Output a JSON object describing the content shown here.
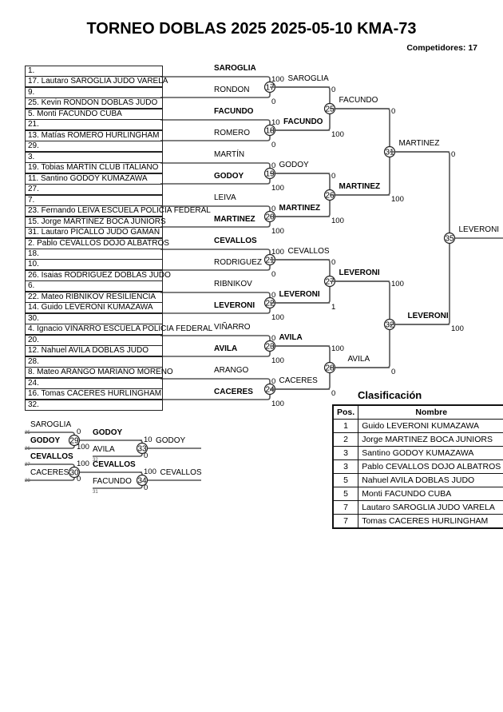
{
  "title": "TORNEO DOBLAS 2025 2025-05-10 KMA-73",
  "competitors": "Competidores: 17",
  "entries": [
    "1.",
    "17. Lautaro SAROGLIA JUDO VARELA",
    "9.",
    "25. Kevin RONDON DOBLAS JUDO",
    "5. Monti FACUNDO CUBA",
    "21.",
    "13. Matías ROMERO HURLINGHAM",
    "29.",
    "3.",
    "19. Tobias MARTÍN CLUB ITALIANO",
    "11. Santino GODOY KUMAZAWA",
    "27.",
    "7.",
    "23. Fernando LEIVA ESCUELA POLICIA FEDERAL",
    "15. Jorge MARTINEZ BOCA JUNIORS",
    "31. Lautaro PICALLO JUDO GAMAN",
    "2. Pablo CEVALLOS DOJO ALBATROS",
    "18.",
    "10.",
    "26. Isaias RODRIGUEZ DOBLAS JUDO",
    "6.",
    "22. Mateo RIBNIKOV RESILIENCIA",
    "14. Guido LEVERONI KUMAZAWA",
    "30.",
    "4. Ignacio VIÑARRO ESCUELA POLICIA FEDERAL",
    "20.",
    "12. Nahuel AVILA DOBLAS JUDO",
    "28.",
    "8. Mateo ARANGO MARIANO MORENO",
    "24.",
    "16. Tomas CACERES HURLINGHAM",
    "32."
  ],
  "first_round": [
    {
      "top": "SAROGLIA",
      "top_bold": true,
      "bottom": "RONDON",
      "bottom_bold": false
    },
    {
      "top": "FACUNDO",
      "top_bold": true,
      "bottom": "ROMERO",
      "bottom_bold": false
    },
    {
      "top": "MARTÍN",
      "top_bold": false,
      "bottom": "GODOY",
      "bottom_bold": true
    },
    {
      "top": "LEIVA",
      "top_bold": false,
      "bottom": "MARTINEZ",
      "bottom_bold": true
    },
    {
      "top": "CEVALLOS",
      "top_bold": true,
      "bottom": "RODRIGUEZ",
      "bottom_bold": false
    },
    {
      "top": "RIBNIKOV",
      "top_bold": false,
      "bottom": "LEVERONI",
      "bottom_bold": true
    },
    {
      "top": "VIÑARRO",
      "top_bold": false,
      "bottom": "AVILA",
      "bottom_bold": true
    },
    {
      "top": "ARANGO",
      "top_bold": false,
      "bottom": "CACERES",
      "bottom_bold": true
    }
  ],
  "rounds": [
    [
      {
        "num": "17",
        "score_top": "100",
        "score_bottom": "0",
        "winner": "SAROGLIA",
        "winner_bold": false
      },
      {
        "num": "18",
        "score_top": "10",
        "score_bottom": "0",
        "winner": "FACUNDO",
        "winner_bold": true
      },
      {
        "num": "19",
        "score_top": "0",
        "score_bottom": "100",
        "winner": "GODOY",
        "winner_bold": false
      },
      {
        "num": "20",
        "score_top": "0",
        "score_bottom": "100",
        "winner": "MARTINEZ",
        "winner_bold": true
      },
      {
        "num": "21",
        "score_top": "100",
        "score_bottom": "0",
        "winner": "CEVALLOS",
        "winner_bold": false
      },
      {
        "num": "22",
        "score_top": "0",
        "score_bottom": "100",
        "winner": "LEVERONI",
        "winner_bold": true
      },
      {
        "num": "23",
        "score_top": "0",
        "score_bottom": "100",
        "winner": "AVILA",
        "winner_bold": true
      },
      {
        "num": "24",
        "score_top": "0",
        "score_bottom": "100",
        "winner": "CACERES",
        "winner_bold": false
      }
    ],
    [
      {
        "num": "25",
        "score_top": "0",
        "score_bottom": "100",
        "winner": "FACUNDO",
        "winner_bold": false
      },
      {
        "num": "26",
        "score_top": "0",
        "score_bottom": "100",
        "winner": "MARTINEZ",
        "winner_bold": true
      },
      {
        "num": "27",
        "score_top": "0",
        "score_bottom": "1",
        "winner": "LEVERONI",
        "winner_bold": true
      },
      {
        "num": "28",
        "score_top": "100",
        "score_bottom": "0",
        "winner": "AVILA",
        "winner_bold": false
      }
    ],
    [
      {
        "num": "31",
        "score_top": "0",
        "score_bottom": "100",
        "winner": "MARTINEZ",
        "winner_bold": false
      },
      {
        "num": "32",
        "score_top": "100",
        "score_bottom": "0",
        "winner": "LEVERONI",
        "winner_bold": true
      }
    ],
    [
      {
        "num": "35",
        "score_top": "0",
        "score_bottom": "100",
        "winner": "LEVERONI",
        "winner_bold": false
      }
    ]
  ],
  "repechage": [
    {
      "first": {
        "num": "29",
        "top": "SAROGLIA",
        "top_bold": false,
        "top_src": "25",
        "bottom": "GODOY",
        "bottom_bold": true,
        "bottom_src": "26",
        "score_top": "0",
        "score_bottom": "100",
        "winner": "GODOY",
        "winner_bold": true
      },
      "second": {
        "num": "33",
        "bottom": "AVILA",
        "bottom_bold": false,
        "bottom_src": "32",
        "score_top": "10",
        "score_bottom": "0",
        "winner": "GODOY",
        "winner_bold": false
      }
    },
    {
      "first": {
        "num": "30",
        "top": "CEVALLOS",
        "top_bold": true,
        "top_src": "27",
        "bottom": "CACERES",
        "bottom_bold": false,
        "bottom_src": "28",
        "score_top": "100",
        "score_bottom": "0",
        "winner": "CEVALLOS",
        "winner_bold": true
      },
      "second": {
        "num": "34",
        "bottom": "FACUNDO",
        "bottom_bold": false,
        "bottom_src": "31",
        "score_top": "100",
        "score_bottom": "0",
        "winner": "CEVALLOS",
        "winner_bold": false
      }
    }
  ],
  "classification": {
    "title": "Clasificación",
    "headers": [
      "Pos.",
      "Nombre"
    ],
    "rows": [
      {
        "pos": "1",
        "name": "Guido LEVERONI KUMAZAWA"
      },
      {
        "pos": "2",
        "name": "Jorge MARTINEZ BOCA JUNIORS"
      },
      {
        "pos": "3",
        "name": "Santino GODOY KUMAZAWA"
      },
      {
        "pos": "3",
        "name": "Pablo CEVALLOS DOJO ALBATROS"
      },
      {
        "pos": "5",
        "name": "Nahuel AVILA DOBLAS JUDO"
      },
      {
        "pos": "5",
        "name": "Monti FACUNDO CUBA"
      },
      {
        "pos": "7",
        "name": "Lautaro SAROGLIA JUDO VARELA"
      },
      {
        "pos": "7",
        "name": "Tomas CACERES HURLINGHAM"
      }
    ]
  }
}
